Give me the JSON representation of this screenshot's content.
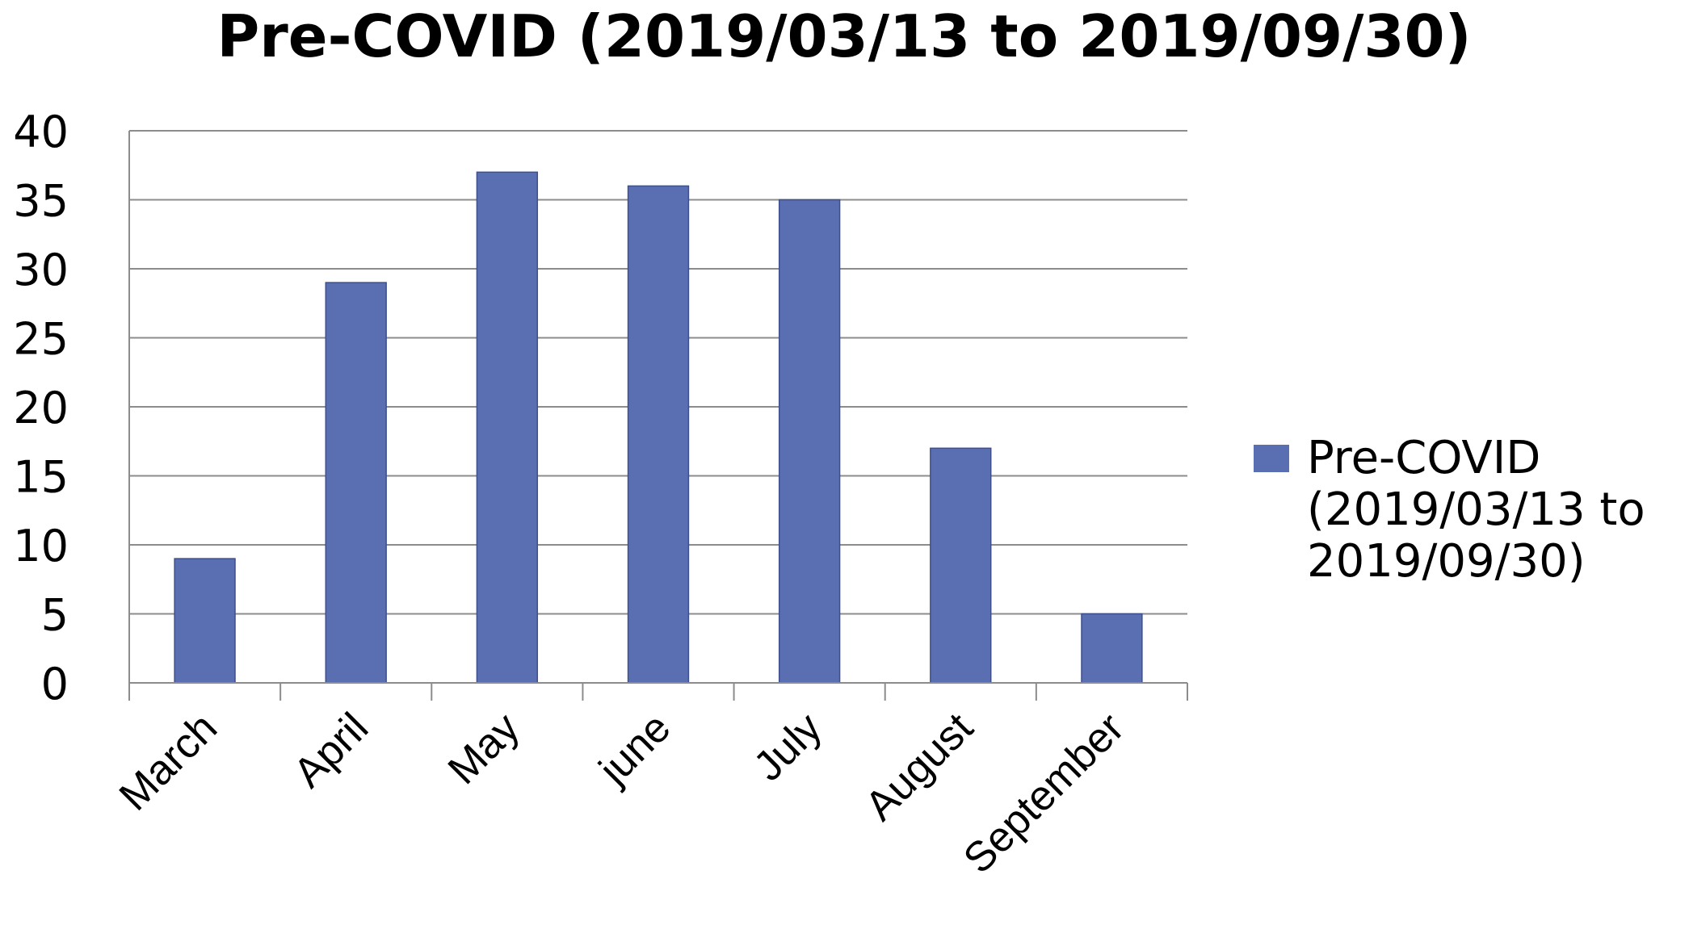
{
  "chart_data": {
    "type": "bar",
    "title": "Pre-COVID (2019/03/13 to 2019/09/30)",
    "xlabel": "",
    "ylabel": "",
    "categories": [
      "March",
      "April",
      "May",
      "june",
      "July",
      "August",
      "September"
    ],
    "series": [
      {
        "name": "Pre-COVID (2019/03/13 to 2019/09/30)",
        "values": [
          9,
          29,
          37,
          36,
          35,
          17,
          5
        ],
        "color": "#5a6fb2"
      }
    ],
    "ylim": [
      0,
      40
    ],
    "yticks": [
      0,
      5,
      10,
      15,
      20,
      25,
      30,
      35,
      40
    ],
    "grid": true,
    "legend_position": "right",
    "legend_lines": [
      "Pre-COVID",
      "(2019/03/13 to",
      "2019/09/30)"
    ]
  }
}
